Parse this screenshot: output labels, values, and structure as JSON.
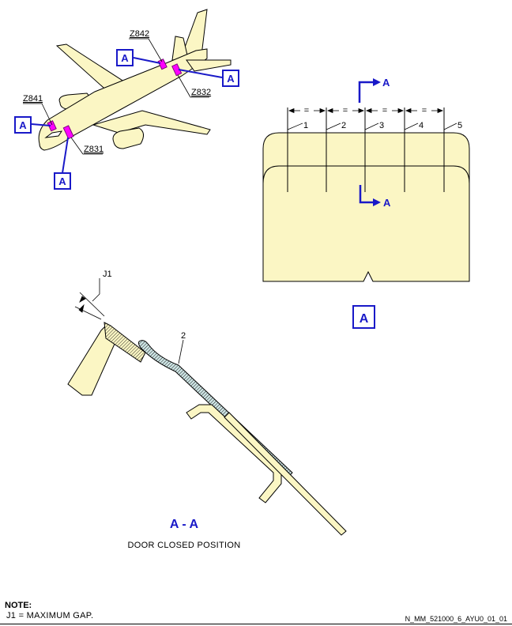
{
  "aircraft_view": {
    "zones": [
      "Z842",
      "Z832",
      "Z841",
      "Z831"
    ],
    "ref_label": "A"
  },
  "view_a": {
    "ref_label": "A",
    "section_marker": "A",
    "dimension_marks": [
      "=",
      "=",
      "=",
      "="
    ],
    "callouts": [
      "1",
      "2",
      "3",
      "4",
      "5"
    ]
  },
  "section_aa": {
    "title": "A - A",
    "caption": "DOOR CLOSED POSITION",
    "gap_label": "J1",
    "callout": "2"
  },
  "note": {
    "title": "NOTE:",
    "text": "J1 = MAXIMUM GAP."
  },
  "drawing_ref": "N_MM_521000_6_AYU0_01_01",
  "colors": {
    "part_fill": "#fbf6c4",
    "ref_blue": "#1919c8",
    "highlight": "#ff00ff"
  }
}
